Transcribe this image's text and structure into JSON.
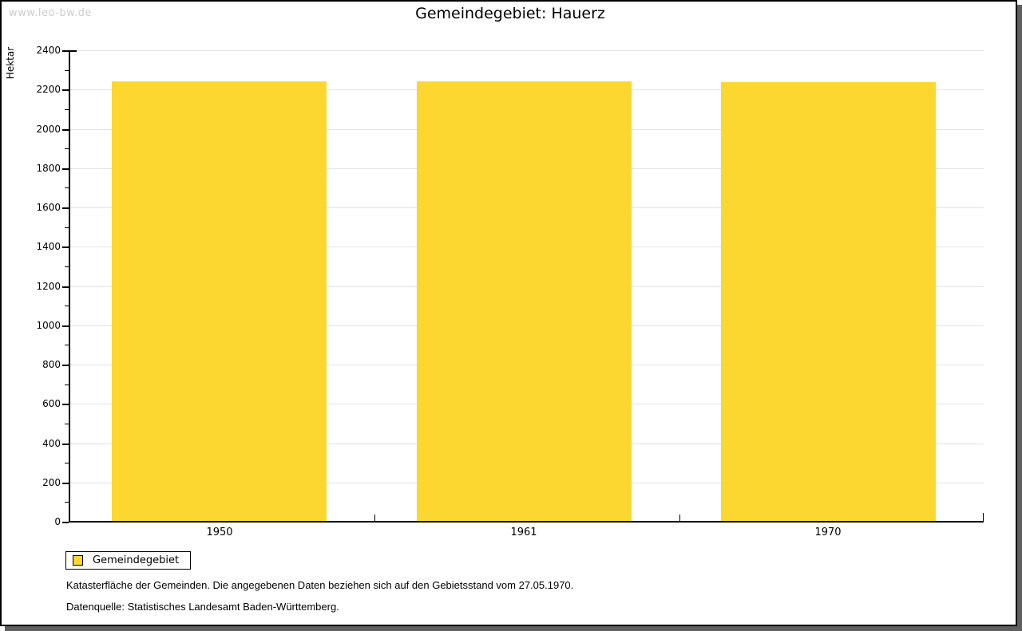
{
  "watermark": "www.leo-bw.de",
  "title": "Gemeindegebiet: Hauerz",
  "chart_data": {
    "type": "bar",
    "title": "Gemeindegebiet: Hauerz",
    "categories": [
      "1950",
      "1961",
      "1970"
    ],
    "series": [
      {
        "name": "Gemeindegebiet",
        "values": [
          2240,
          2240,
          2237
        ]
      }
    ],
    "xlabel": "",
    "ylabel": "Hektar",
    "ylim": [
      0,
      2400
    ],
    "ytick_step": 200,
    "ytick_minor_step": 100,
    "grid": true,
    "bar_color": "#fcd72f",
    "legend_position": "bottom-left"
  },
  "legend": {
    "items": [
      {
        "label": "Gemeindegebiet",
        "color": "#fcd72f"
      }
    ]
  },
  "footnotes": [
    "Katasterfläche der Gemeinden. Die angegebenen Daten beziehen sich auf den Gebietsstand vom 27.05.1970.",
    "Datenquelle: Statistisches Landesamt Baden-Württemberg."
  ],
  "colors": {
    "bar": "#fcd72f",
    "gridline": "#e2e2e2",
    "axis": "#000000",
    "watermark": "#cccccc",
    "frame_shadow": "#5f5f5f",
    "background": "#ffffff"
  }
}
